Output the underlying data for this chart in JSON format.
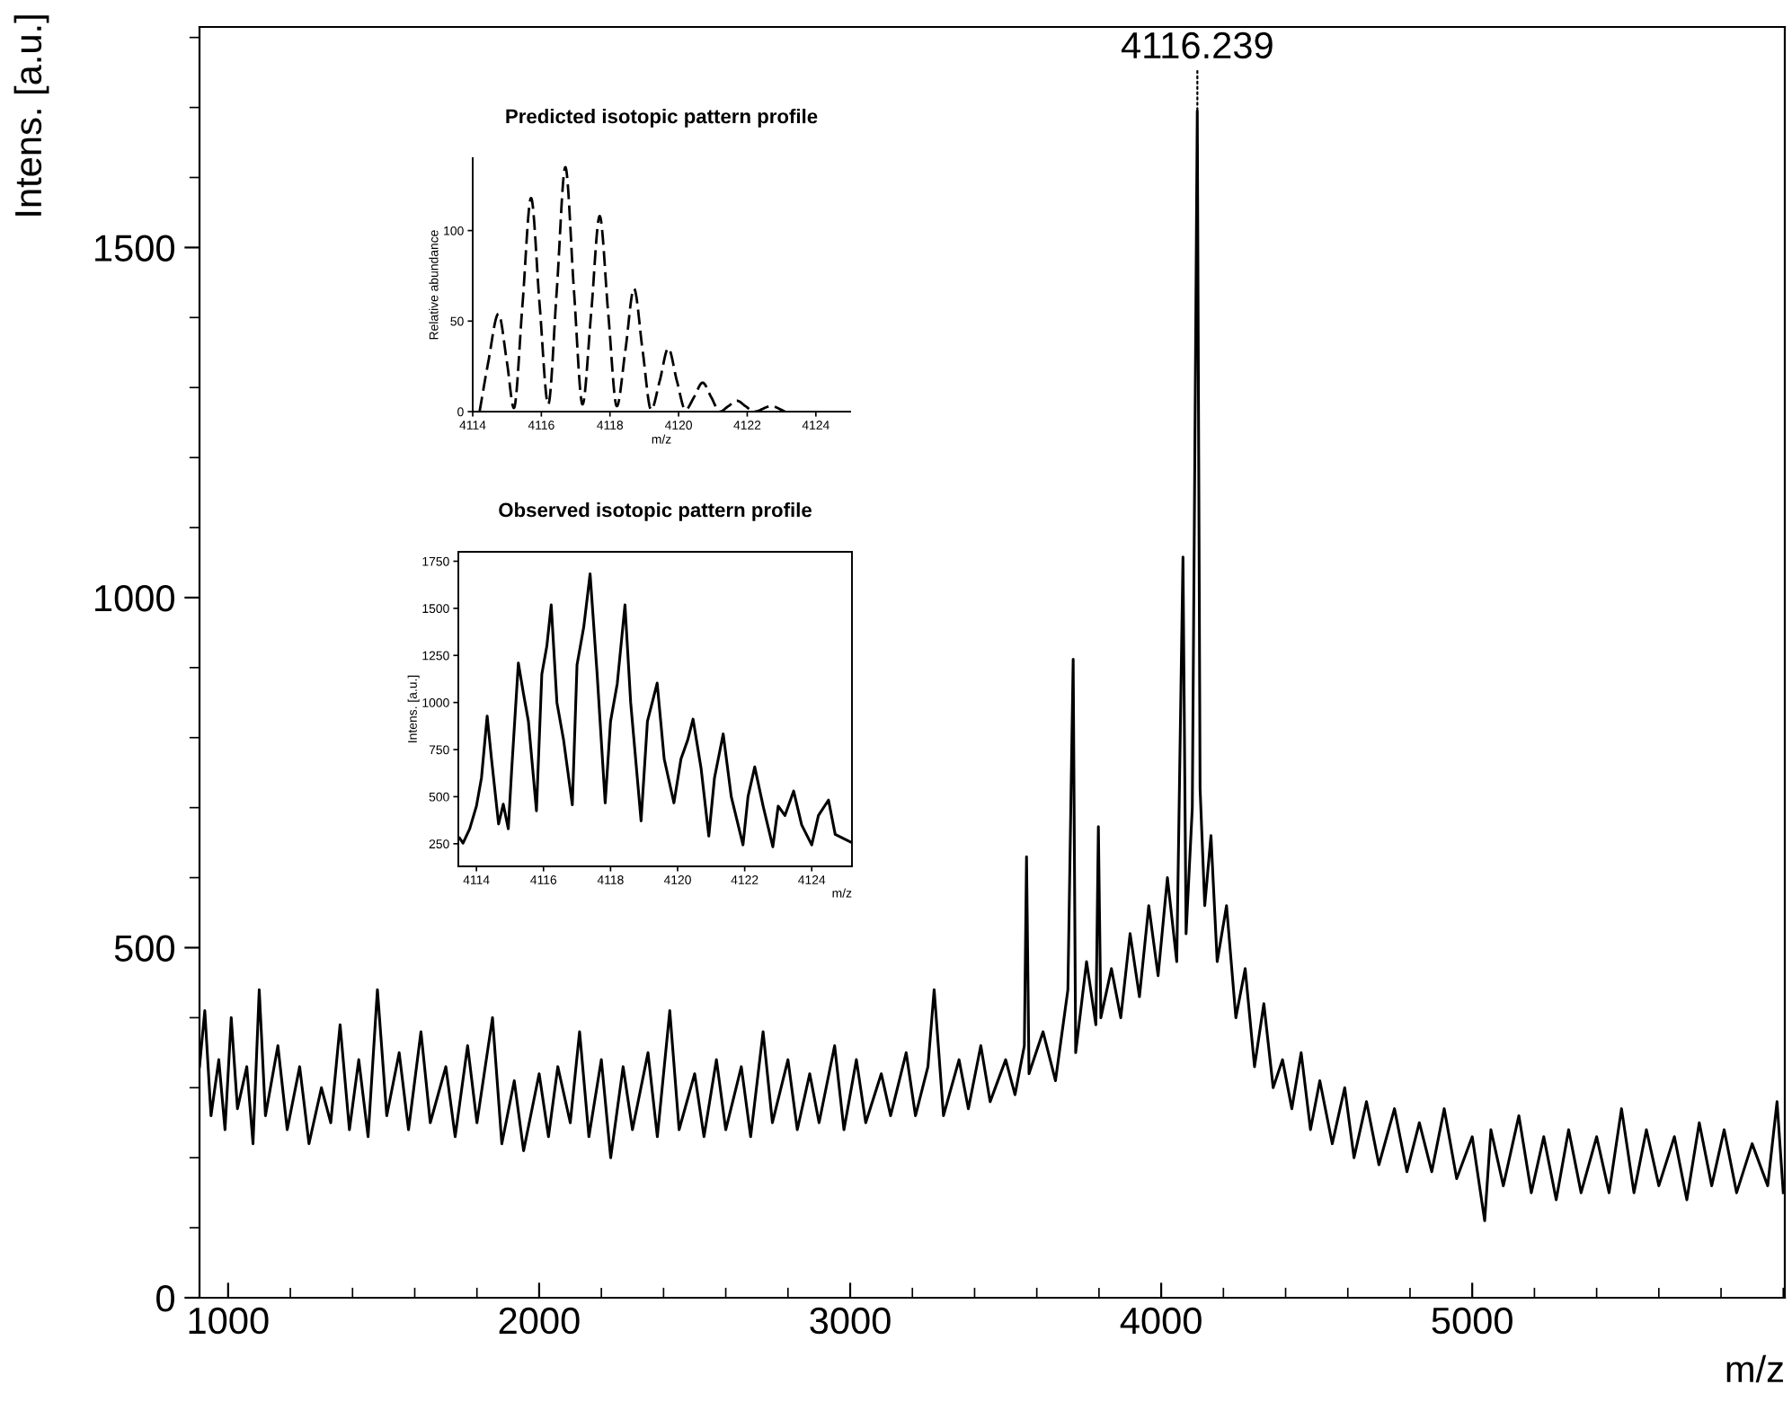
{
  "chart_data": [
    {
      "type": "line",
      "xlabel": "m/z",
      "ylabel": "Intens. [a.u.]",
      "xlim": [
        908,
        6005
      ],
      "ylim": [
        0,
        1815
      ],
      "xticks": [
        1000,
        2000,
        3000,
        4000,
        5000
      ],
      "yticks": [
        0,
        500,
        1000,
        1500
      ],
      "line_style": "solid",
      "annotations": [
        {
          "text": "4116.239",
          "x": 4116.239,
          "y": 1695
        }
      ],
      "series": [
        {
          "color": "#000000",
          "x": [
            908,
            925,
            945,
            970,
            990,
            1010,
            1030,
            1060,
            1080,
            1100,
            1120,
            1160,
            1190,
            1230,
            1260,
            1300,
            1330,
            1360,
            1390,
            1420,
            1450,
            1480,
            1510,
            1550,
            1580,
            1620,
            1650,
            1700,
            1730,
            1770,
            1800,
            1850,
            1880,
            1920,
            1950,
            2000,
            2030,
            2060,
            2100,
            2130,
            2160,
            2200,
            2230,
            2270,
            2300,
            2350,
            2380,
            2420,
            2450,
            2500,
            2530,
            2570,
            2600,
            2650,
            2680,
            2720,
            2750,
            2800,
            2830,
            2870,
            2900,
            2950,
            2980,
            3020,
            3050,
            3100,
            3130,
            3180,
            3210,
            3250,
            3270,
            3300,
            3350,
            3380,
            3420,
            3450,
            3500,
            3530,
            3560,
            3567,
            3575,
            3620,
            3660,
            3700,
            3717,
            3725,
            3760,
            3790,
            3798,
            3806,
            3840,
            3870,
            3900,
            3930,
            3960,
            3990,
            4020,
            4050,
            4070,
            4080,
            4100,
            4116,
            4125,
            4140,
            4160,
            4180,
            4210,
            4240,
            4270,
            4300,
            4330,
            4360,
            4390,
            4420,
            4450,
            4480,
            4510,
            4550,
            4590,
            4620,
            4660,
            4700,
            4750,
            4790,
            4830,
            4870,
            4910,
            4950,
            5000,
            5040,
            5060,
            5100,
            5150,
            5190,
            5230,
            5270,
            5310,
            5350,
            5400,
            5440,
            5480,
            5520,
            5560,
            5600,
            5650,
            5690,
            5730,
            5770,
            5810,
            5850,
            5900,
            5950,
            5980,
            6000
          ],
          "values": [
            330,
            410,
            260,
            340,
            240,
            400,
            270,
            330,
            220,
            440,
            260,
            360,
            240,
            330,
            220,
            300,
            250,
            390,
            240,
            340,
            230,
            440,
            260,
            350,
            240,
            380,
            250,
            330,
            230,
            360,
            250,
            400,
            220,
            310,
            210,
            320,
            230,
            330,
            250,
            380,
            230,
            340,
            200,
            330,
            240,
            350,
            230,
            410,
            240,
            320,
            230,
            340,
            240,
            330,
            230,
            380,
            250,
            340,
            240,
            320,
            250,
            360,
            240,
            340,
            250,
            320,
            260,
            350,
            260,
            330,
            440,
            260,
            340,
            270,
            360,
            280,
            340,
            290,
            360,
            630,
            320,
            380,
            310,
            440,
            912,
            350,
            480,
            390,
            673,
            400,
            470,
            400,
            520,
            430,
            560,
            460,
            600,
            480,
            1058,
            520,
            700,
            1695,
            727,
            560,
            660,
            480,
            560,
            400,
            470,
            330,
            420,
            300,
            340,
            270,
            350,
            240,
            310,
            220,
            300,
            200,
            280,
            190,
            270,
            180,
            250,
            180,
            270,
            170,
            230,
            110,
            240,
            160,
            260,
            150,
            230,
            140,
            240,
            150,
            230,
            150,
            270,
            150,
            240,
            160,
            230,
            140,
            250,
            160,
            240,
            150,
            220,
            160,
            280,
            150
          ]
        }
      ]
    },
    {
      "type": "line",
      "title": "Predicted isotopic pattern profile",
      "xlabel": "m/z",
      "ylabel": "Relative abundance",
      "xlim": [
        4114,
        4125
      ],
      "ylim": [
        0,
        140
      ],
      "xticks": [
        4114,
        4116,
        4118,
        4120,
        4122,
        4124
      ],
      "yticks": [
        0,
        50,
        100
      ],
      "line_style": "dashed",
      "series": [
        {
          "color": "#000000",
          "x": [
            4114.2,
            4114.45,
            4114.75,
            4115.0,
            4115.2,
            4115.45,
            4115.7,
            4115.95,
            4116.2,
            4116.45,
            4116.7,
            4116.95,
            4117.2,
            4117.45,
            4117.7,
            4117.95,
            4118.2,
            4118.45,
            4118.7,
            4118.95,
            4119.2,
            4119.45,
            4119.7,
            4119.95,
            4120.2,
            4120.45,
            4120.7,
            4120.95,
            4121.2,
            4121.45,
            4121.7,
            4121.95,
            4122.2,
            4122.7,
            4123.1
          ],
          "values": [
            0,
            27,
            54,
            27,
            2,
            59,
            118,
            59,
            4,
            67,
            135,
            67,
            4,
            54,
            108,
            54,
            3,
            34,
            68,
            34,
            1,
            17,
            35,
            17,
            1,
            8,
            16,
            8,
            0,
            3,
            6,
            3,
            0,
            3,
            0
          ]
        }
      ]
    },
    {
      "type": "line",
      "title": "Observed isotopic pattern profile",
      "xlabel": "m/z",
      "ylabel": "Intens. [a.u.]",
      "xlim": [
        4113.46,
        4125.2
      ],
      "ylim": [
        130,
        1800
      ],
      "xticks": [
        4114,
        4116,
        4118,
        4120,
        4122,
        4124
      ],
      "yticks": [
        250,
        500,
        750,
        1000,
        1250,
        1500,
        1750
      ],
      "line_style": "solid",
      "series": [
        {
          "color": "#000000",
          "x": [
            4113.5,
            4113.6,
            4113.8,
            4114.0,
            4114.15,
            4114.32,
            4114.45,
            4114.66,
            4114.8,
            4114.95,
            4115.05,
            4115.25,
            4115.4,
            4115.55,
            4115.79,
            4115.95,
            4116.1,
            4116.23,
            4116.4,
            4116.6,
            4116.86,
            4117.0,
            4117.2,
            4117.39,
            4117.6,
            4117.84,
            4118.0,
            4118.2,
            4118.43,
            4118.6,
            4118.91,
            4119.1,
            4119.39,
            4119.6,
            4119.89,
            4120.1,
            4120.3,
            4120.46,
            4120.7,
            4120.93,
            4121.1,
            4121.36,
            4121.6,
            4121.95,
            4122.1,
            4122.3,
            4122.55,
            4122.84,
            4123.0,
            4123.2,
            4123.46,
            4123.7,
            4124.0,
            4124.2,
            4124.5,
            4124.7,
            4124.98,
            4125.15
          ],
          "values": [
            280,
            253,
            330,
            450,
            600,
            928,
            700,
            355,
            460,
            330,
            640,
            1209,
            1050,
            900,
            425,
            1150,
            1300,
            1518,
            1000,
            800,
            457,
            1200,
            1400,
            1683,
            1150,
            467,
            900,
            1100,
            1518,
            1000,
            371,
            900,
            1103,
            700,
            467,
            700,
            800,
            912,
            650,
            291,
            600,
            833,
            500,
            244,
            500,
            658,
            450,
            234,
            450,
            400,
            530,
            350,
            244,
            400,
            482,
            300,
            275,
            260
          ]
        }
      ]
    }
  ]
}
